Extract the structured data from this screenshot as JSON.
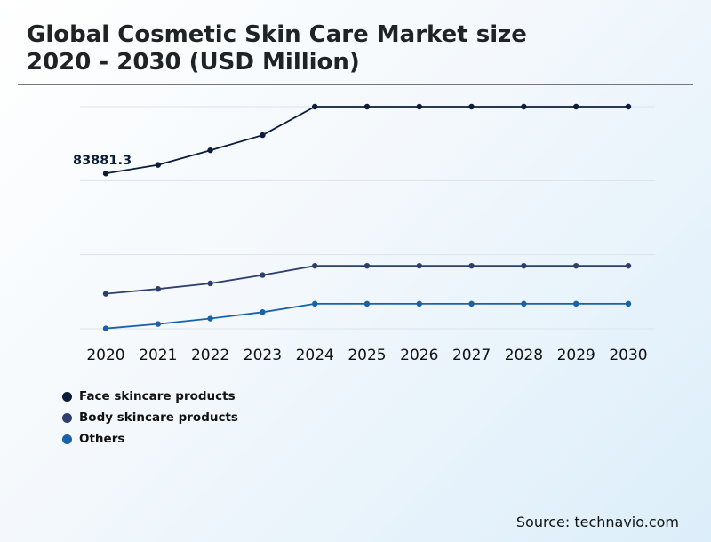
{
  "title_lines": [
    "Global Cosmetic Skin Care Market size",
    "2020 - 2030 (USD Million)"
  ],
  "source": "Source: technavio.com",
  "chart_data": {
    "type": "line",
    "title": "Global Cosmetic Skin Care Market size 2020 - 2030 (USD Million)",
    "categories": [
      "2020",
      "2021",
      "2022",
      "2023",
      "2024",
      "2025",
      "2026",
      "2027",
      "2028",
      "2029",
      "2030"
    ],
    "xlabel": "",
    "ylabel": "",
    "ylim": [
      0,
      120000
    ],
    "grid": true,
    "legend_position": "bottom-left",
    "annotation": {
      "series": 0,
      "index": 0,
      "text": "83881.3"
    },
    "series": [
      {
        "name": "Face skincare products",
        "color": "#0b1d3a",
        "values": [
          83881.3,
          88500,
          96400,
          104600,
          120000,
          120000,
          120000,
          120000,
          120000,
          120000,
          120000
        ]
      },
      {
        "name": "Body skincare products",
        "color": "#2e3f6e",
        "values": [
          18900,
          21500,
          24500,
          29000,
          34000,
          34000,
          34000,
          34000,
          34000,
          34000,
          34000
        ]
      },
      {
        "name": "Others",
        "color": "#1762a8",
        "values": [
          200,
          2600,
          5500,
          9000,
          13500,
          13500,
          13500,
          13500,
          13500,
          13500,
          13500
        ]
      }
    ]
  }
}
